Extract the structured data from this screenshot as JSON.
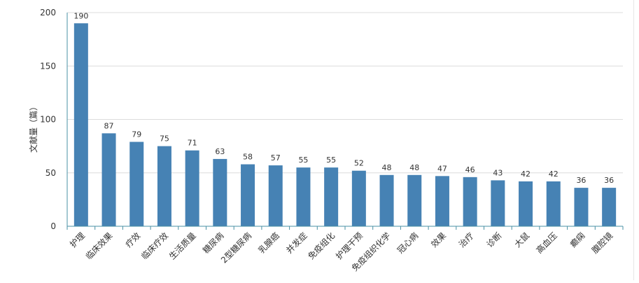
{
  "chart_data": {
    "type": "bar",
    "categories": [
      "护理",
      "临床效果",
      "疗效",
      "临床疗效",
      "生活质量",
      "糖尿病",
      "2型糖尿病",
      "乳腺癌",
      "并发症",
      "免疫组化",
      "护理干预",
      "免疫组织化学",
      "冠心病",
      "效果",
      "治疗",
      "诊断",
      "大鼠",
      "高血压",
      "癫痫",
      "腹腔镜"
    ],
    "values": [
      190,
      87,
      79,
      75,
      71,
      63,
      58,
      57,
      55,
      55,
      52,
      48,
      48,
      47,
      46,
      43,
      42,
      42,
      36,
      36
    ],
    "ylabel": "文献量（篇）",
    "xlabel": "",
    "ylim": [
      0,
      200
    ],
    "yticks": [
      "0",
      "50",
      "100",
      "150",
      "200"
    ],
    "grid": true,
    "bar_color": "#4682b4",
    "axis_color": "#4a90a4",
    "grid_color": "#dcdcdc"
  }
}
